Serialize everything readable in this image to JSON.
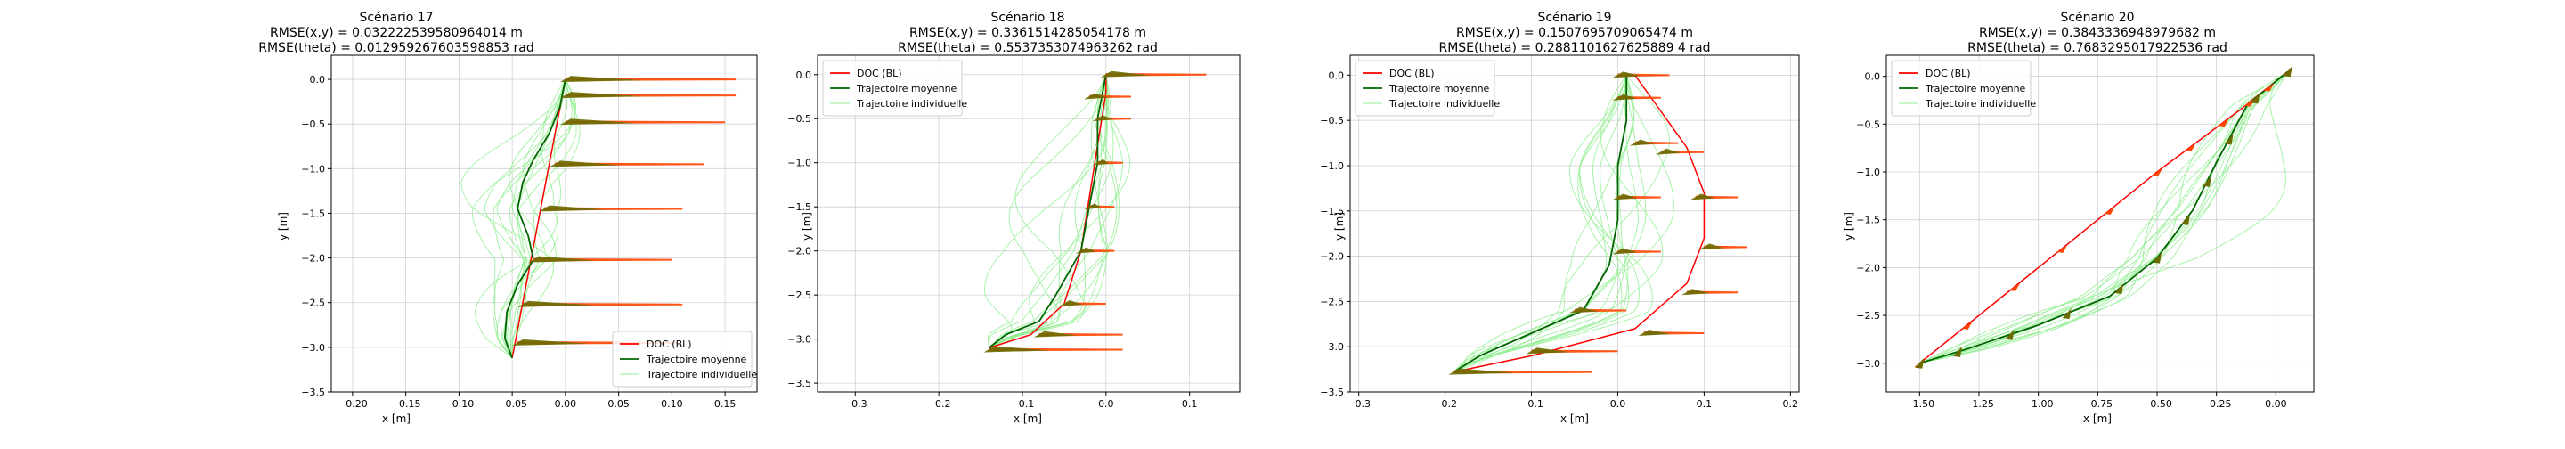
{
  "chart_data": [
    {
      "type": "line",
      "title": [
        "Scénario 17",
        "RMSE(x,y) = 0.032222539580964014 m",
        "RMSE(theta) = 0.012959267603598853 rad"
      ],
      "xlabel": "x [m]",
      "ylabel": "y [m]",
      "xlim": [
        -0.22,
        0.18
      ],
      "ylim": [
        -3.5,
        0.27
      ],
      "xticks": [
        -0.2,
        -0.15,
        -0.1,
        -0.05,
        0.0,
        0.05,
        0.1,
        0.15
      ],
      "yticks": [
        0.0,
        -0.5,
        -1.0,
        -1.5,
        -2.0,
        -2.5,
        -3.0,
        -3.5
      ],
      "grid": true,
      "legend_position": "bottom-right",
      "legend": [
        "DOC (BL)",
        "Trajectoire moyenne",
        "Trajectoire individuelle"
      ],
      "series": [
        {
          "name": "DOC (BL)",
          "color": "#ff0000",
          "points": [
            [
              -0.05,
              -3.12
            ],
            [
              0.0,
              0.0
            ]
          ]
        },
        {
          "name": "Trajectoire moyenne",
          "color": "#006400",
          "points": [
            [
              -0.05,
              -3.12
            ],
            [
              -0.057,
              -2.9
            ],
            [
              -0.055,
              -2.6
            ],
            [
              -0.045,
              -2.3
            ],
            [
              -0.03,
              -2.02
            ],
            [
              -0.035,
              -1.75
            ],
            [
              -0.045,
              -1.45
            ],
            [
              -0.04,
              -1.15
            ],
            [
              -0.03,
              -0.9
            ],
            [
              -0.015,
              -0.6
            ],
            [
              -0.005,
              -0.3
            ],
            [
              0.0,
              0.0
            ]
          ]
        },
        {
          "name": "Trajectoire individuelle",
          "color": "#90ee90",
          "points": []
        }
      ],
      "arrows": [
        {
          "x": 0.0,
          "y": 0.0,
          "u": 0.16
        },
        {
          "x": 0.0,
          "y": -0.18,
          "u": 0.16
        },
        {
          "x": 0.0,
          "y": -0.48,
          "u": 0.15
        },
        {
          "x": -0.01,
          "y": -0.95,
          "u": 0.14
        },
        {
          "x": -0.02,
          "y": -1.45,
          "u": 0.13
        },
        {
          "x": -0.03,
          "y": -2.02,
          "u": 0.13
        },
        {
          "x": -0.04,
          "y": -2.52,
          "u": 0.15
        },
        {
          "x": -0.045,
          "y": -2.95,
          "u": 0.15
        }
      ]
    },
    {
      "type": "line",
      "title": [
        "Scénario 18",
        "RMSE(x,y) = 0.3361514285054178 m",
        "RMSE(theta) = 0.5537353074963262 rad"
      ],
      "xlabel": "x [m]",
      "ylabel": "y [m]",
      "xlim": [
        -0.345,
        0.16
      ],
      "ylim": [
        -3.6,
        0.22
      ],
      "xticks": [
        -0.3,
        -0.2,
        -0.1,
        0.0,
        0.1
      ],
      "yticks": [
        0.0,
        -0.5,
        -1.0,
        -1.5,
        -2.0,
        -2.5,
        -3.0,
        -3.5
      ],
      "grid": true,
      "legend_position": "top-left",
      "legend": [
        "DOC (BL)",
        "Trajectoire moyenne",
        "Trajectoire individuelle"
      ],
      "series": [
        {
          "name": "DOC (BL)",
          "color": "#ff0000",
          "points": [
            [
              -0.14,
              -3.1
            ],
            [
              -0.09,
              -2.95
            ],
            [
              -0.05,
              -2.6
            ],
            [
              -0.03,
              -2.0
            ],
            [
              -0.02,
              -1.4
            ],
            [
              -0.01,
              -0.8
            ],
            [
              0.0,
              -0.2
            ],
            [
              0.0,
              0.0
            ]
          ]
        },
        {
          "name": "Trajectoire moyenne",
          "color": "#006400",
          "points": [
            [
              -0.14,
              -3.1
            ],
            [
              -0.12,
              -2.95
            ],
            [
              -0.08,
              -2.8
            ],
            [
              -0.06,
              -2.5
            ],
            [
              -0.03,
              -2.0
            ],
            [
              -0.02,
              -1.5
            ],
            [
              -0.01,
              -1.0
            ],
            [
              -0.01,
              -0.5
            ],
            [
              0.0,
              0.0
            ]
          ]
        },
        {
          "name": "Trajectoire individuelle",
          "color": "#90ee90",
          "points": []
        }
      ],
      "arrows": [
        {
          "x": 0.0,
          "y": 0.0,
          "u": 0.12
        },
        {
          "x": -0.02,
          "y": -0.25,
          "u": 0.05
        },
        {
          "x": -0.01,
          "y": -0.5,
          "u": 0.04
        },
        {
          "x": -0.01,
          "y": -1.0,
          "u": 0.03
        },
        {
          "x": -0.02,
          "y": -1.5,
          "u": 0.03
        },
        {
          "x": -0.03,
          "y": -2.0,
          "u": 0.04
        },
        {
          "x": -0.05,
          "y": -2.6,
          "u": 0.05
        },
        {
          "x": -0.08,
          "y": -2.95,
          "u": 0.1
        },
        {
          "x": -0.14,
          "y": -3.12,
          "u": 0.16
        }
      ]
    },
    {
      "type": "line",
      "title": [
        "Scénario 19",
        "RMSE(x,y) = 0.1507695709065474 m",
        "RMSE(theta) = 0.2881101627625889 4 rad"
      ],
      "xlabel": "x [m]",
      "ylabel": "y [m]",
      "xlim": [
        -0.31,
        0.21
      ],
      "ylim": [
        -3.5,
        0.22
      ],
      "xticks": [
        -0.3,
        -0.2,
        -0.1,
        0.0,
        0.1,
        0.2
      ],
      "yticks": [
        0.0,
        -0.5,
        -1.0,
        -1.5,
        -2.0,
        -2.5,
        -3.0,
        -3.5
      ],
      "grid": true,
      "legend_position": "top-left",
      "legend": [
        "DOC (BL)",
        "Trajectoire moyenne",
        "Trajectoire individuelle"
      ],
      "series": [
        {
          "name": "DOC (BL)",
          "color": "#ff0000",
          "points": [
            [
              -0.19,
              -3.28
            ],
            [
              -0.1,
              -3.1
            ],
            [
              0.02,
              -2.8
            ],
            [
              0.08,
              -2.3
            ],
            [
              0.1,
              -1.8
            ],
            [
              0.1,
              -1.3
            ],
            [
              0.08,
              -0.8
            ],
            [
              0.05,
              -0.4
            ],
            [
              0.02,
              0.0
            ]
          ]
        },
        {
          "name": "Trajectoire moyenne",
          "color": "#006400",
          "points": [
            [
              -0.19,
              -3.28
            ],
            [
              -0.16,
              -3.1
            ],
            [
              -0.1,
              -2.85
            ],
            [
              -0.04,
              -2.6
            ],
            [
              -0.01,
              -2.1
            ],
            [
              0.0,
              -1.6
            ],
            [
              0.0,
              -1.0
            ],
            [
              0.01,
              -0.5
            ],
            [
              0.01,
              0.0
            ]
          ]
        },
        {
          "name": "Trajectoire individuelle",
          "color": "#90ee90",
          "points": []
        }
      ],
      "arrows": [
        {
          "x": 0.0,
          "y": 0.0,
          "u": 0.06
        },
        {
          "x": 0.0,
          "y": -0.25,
          "u": 0.05
        },
        {
          "x": 0.02,
          "y": -0.75,
          "u": 0.05
        },
        {
          "x": 0.05,
          "y": -0.85,
          "u": 0.05
        },
        {
          "x": 0.0,
          "y": -1.35,
          "u": 0.05
        },
        {
          "x": 0.09,
          "y": -1.35,
          "u": 0.05
        },
        {
          "x": 0.0,
          "y": -1.95,
          "u": 0.05
        },
        {
          "x": 0.1,
          "y": -1.9,
          "u": 0.05
        },
        {
          "x": -0.05,
          "y": -2.6,
          "u": 0.06
        },
        {
          "x": 0.08,
          "y": -2.4,
          "u": 0.06
        },
        {
          "x": 0.03,
          "y": -2.85,
          "u": 0.07
        },
        {
          "x": -0.1,
          "y": -3.05,
          "u": 0.1
        },
        {
          "x": -0.19,
          "y": -3.28,
          "u": 0.16
        }
      ]
    },
    {
      "type": "line",
      "title": [
        "Scénario 20",
        "RMSE(x,y) = 0.3843336948979682 m",
        "RMSE(theta) = 0.7683295017922536 rad"
      ],
      "xlabel": "x [m]",
      "ylabel": "y [m]",
      "xlim": [
        -1.64,
        0.16
      ],
      "ylim": [
        -3.3,
        0.22
      ],
      "xticks": [
        -1.5,
        -1.25,
        -1.0,
        -0.75,
        -0.5,
        -0.25,
        0.0
      ],
      "yticks": [
        0.0,
        -0.5,
        -1.0,
        -1.5,
        -2.0,
        -2.5,
        -3.0
      ],
      "grid": true,
      "legend_position": "top-left",
      "legend": [
        "DOC (BL)",
        "Trajectoire moyenne",
        "Trajectoire individuelle"
      ],
      "series": [
        {
          "name": "DOC (BL)",
          "color": "#ff0000",
          "points": [
            [
              -1.5,
              -3.0
            ],
            [
              -1.0,
              -2.0
            ],
            [
              -0.5,
              -1.0
            ],
            [
              -0.15,
              -0.35
            ],
            [
              0.05,
              0.05
            ]
          ]
        },
        {
          "name": "Trajectoire moyenne",
          "color": "#006400",
          "points": [
            [
              -1.5,
              -3.0
            ],
            [
              -1.3,
              -2.85
            ],
            [
              -1.0,
              -2.6
            ],
            [
              -0.7,
              -2.3
            ],
            [
              -0.5,
              -1.9
            ],
            [
              -0.35,
              -1.4
            ],
            [
              -0.25,
              -0.9
            ],
            [
              -0.12,
              -0.3
            ],
            [
              0.05,
              0.05
            ]
          ]
        },
        {
          "name": "Trajectoire individuelle",
          "color": "#90ee90",
          "points": []
        }
      ],
      "arrows": []
    }
  ]
}
